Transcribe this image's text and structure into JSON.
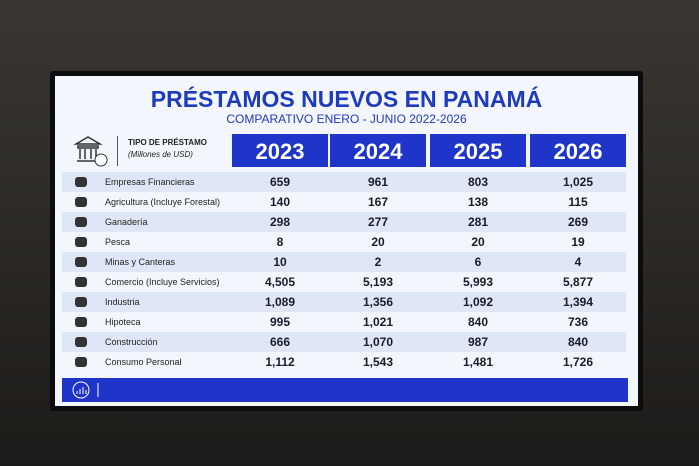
{
  "header": {
    "title": "PRÉSTAMOS NUEVOS EN PANAMÁ",
    "subtitle": "COMPARATIVO ENERO - JUNIO 2022-2026"
  },
  "table": {
    "label_header": "TIPO DE PRÉSTAMO",
    "label_subheader": "(Millones de USD)",
    "columns": [
      "2023",
      "2024",
      "2025",
      "2026"
    ],
    "rows": [
      {
        "label": "Empresas Financieras",
        "values": [
          "659",
          "961",
          "803",
          "1,025"
        ]
      },
      {
        "label": "Agricultura (Incluye Forestal)",
        "values": [
          "140",
          "167",
          "138",
          "115"
        ]
      },
      {
        "label": "Ganadería",
        "values": [
          "298",
          "277",
          "281",
          "269"
        ]
      },
      {
        "label": "Pesca",
        "values": [
          "8",
          "20",
          "20",
          "19"
        ]
      },
      {
        "label": "Minas y Canteras",
        "values": [
          "10",
          "2",
          "6",
          "4"
        ]
      },
      {
        "label": "Comercio (Incluye Servicios)",
        "values": [
          "4,505",
          "5,193",
          "5,993",
          "5,877"
        ]
      },
      {
        "label": "Industria",
        "values": [
          "1,089",
          "1,356",
          "1,092",
          "1,394"
        ]
      },
      {
        "label": "Hipoteca",
        "values": [
          "995",
          "1,021",
          "840",
          "736"
        ]
      },
      {
        "label": "Construcción",
        "values": [
          "666",
          "1,070",
          "987",
          "840"
        ]
      },
      {
        "label": "Consumo Personal",
        "values": [
          "1,112",
          "1,543",
          "1,481",
          "1,726"
        ]
      }
    ]
  }
}
